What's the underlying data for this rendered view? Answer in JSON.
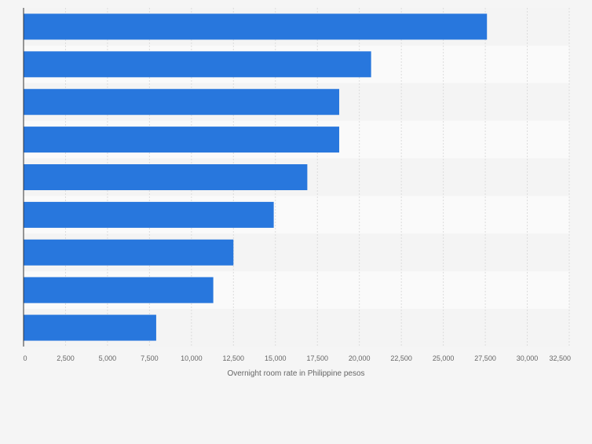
{
  "chart_data": {
    "type": "bar",
    "orientation": "horizontal",
    "categories": [
      "",
      "",
      "",
      "",
      "",
      "",
      "",
      "",
      ""
    ],
    "values": [
      27600,
      20700,
      18800,
      18800,
      16900,
      14900,
      12500,
      11300,
      7900
    ],
    "xlabel": "Overnight room rate in Philippine pesos",
    "ylabel": "",
    "xlim": [
      0,
      32500
    ],
    "xticks": [
      0,
      2500,
      5000,
      7500,
      10000,
      12500,
      15000,
      17500,
      20000,
      22500,
      25000,
      27500,
      30000,
      32500
    ],
    "xtick_labels": [
      "0",
      "2,500",
      "5,000",
      "7,500",
      "10,000",
      "12,500",
      "15,000",
      "17,500",
      "20,000",
      "22,500",
      "25,000",
      "27,500",
      "30,000",
      "32,500"
    ],
    "grid": true,
    "legend": "none",
    "colors": {
      "bar": "#2877dd",
      "band_light": "#f4f4f4",
      "band_alt": "#fafafa",
      "grid": "#dcdcdc",
      "axis": "#333333",
      "tick_text": "#666666"
    }
  }
}
